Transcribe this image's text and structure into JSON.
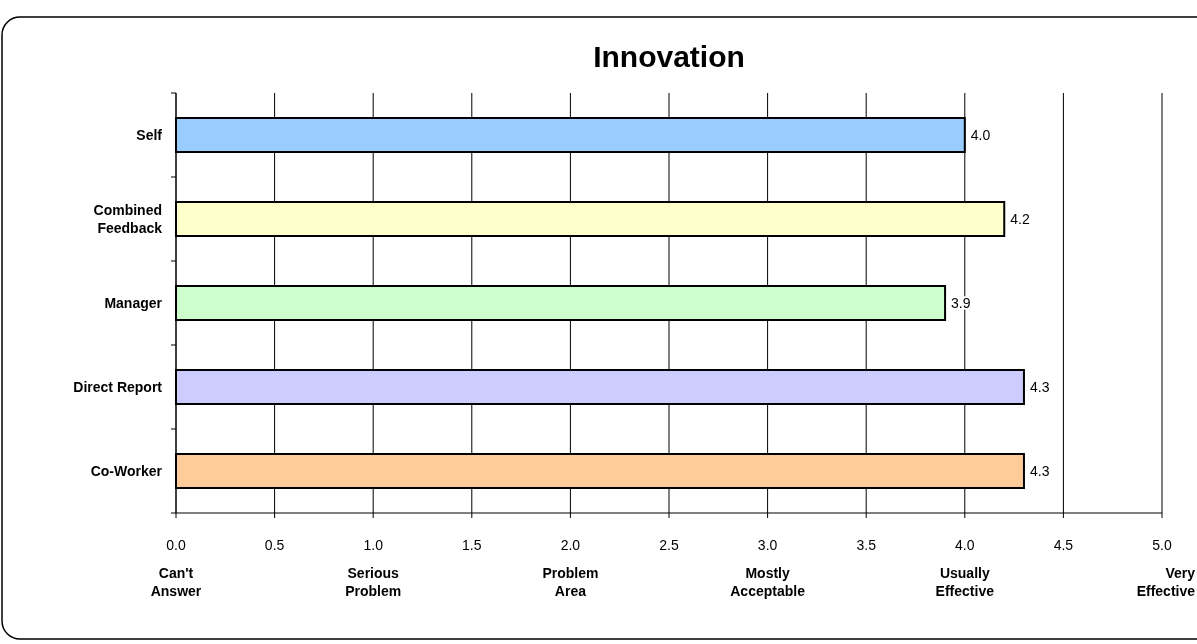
{
  "chart_data": {
    "type": "bar",
    "orientation": "horizontal",
    "title": "Innovation",
    "categories": [
      "Self",
      "Combined Feedback",
      "Manager",
      "Direct Report",
      "Co-Worker"
    ],
    "values": [
      4.0,
      4.2,
      3.9,
      4.3,
      4.3
    ],
    "colors": [
      "#99ccff",
      "#ffffcc",
      "#ccffcc",
      "#ccccff",
      "#ffcc99"
    ],
    "value_labels": [
      "4.0",
      "4.2",
      "3.9",
      "4.3",
      "4.3"
    ],
    "xlim": [
      0,
      5
    ],
    "xticks": [
      {
        "value": 0,
        "label": "0.0"
      },
      {
        "value": 0.5,
        "label": "0.5"
      },
      {
        "value": 1,
        "label": "1.0"
      },
      {
        "value": 1.5,
        "label": "1.5"
      },
      {
        "value": 2,
        "label": "2.0"
      },
      {
        "value": 2.5,
        "label": "2.5"
      },
      {
        "value": 3,
        "label": "3.0"
      },
      {
        "value": 3.5,
        "label": "3.5"
      },
      {
        "value": 4,
        "label": "4.0"
      },
      {
        "value": 4.5,
        "label": "4.5"
      },
      {
        "value": 5,
        "label": "5.0"
      }
    ],
    "grid": "x",
    "annotations": [
      "Can't Answer",
      "Serious Problem",
      "Problem Area",
      "Mostly Acceptable",
      "Usually Effective",
      "Very Effective"
    ]
  }
}
